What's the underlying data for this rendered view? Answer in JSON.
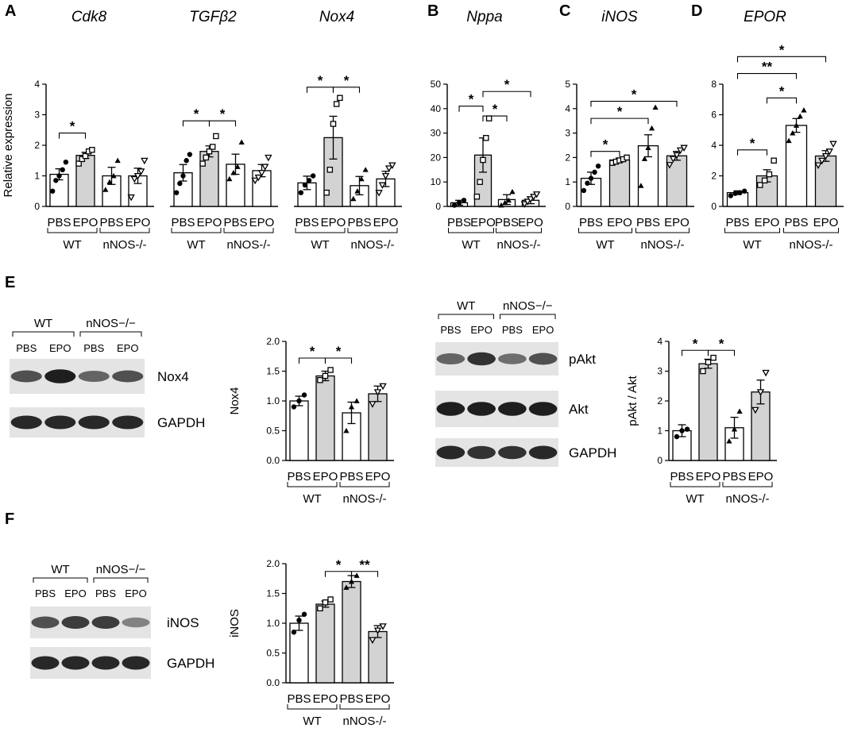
{
  "chart_data": [
    {
      "id": "A-cdk8",
      "type": "bar",
      "panel": "A",
      "title": "Cdk8",
      "ylabel": "Relative expression",
      "ylim": [
        0,
        4
      ],
      "yticks": [
        0,
        1,
        2,
        3,
        4
      ],
      "categories": [
        "PBS",
        "EPO",
        "PBS",
        "EPO"
      ],
      "groups": [
        {
          "label": "WT",
          "span": [
            0,
            1
          ]
        },
        {
          "label": "nNOS-/-",
          "span": [
            2,
            3
          ]
        }
      ],
      "values": [
        1.05,
        1.67,
        1.0,
        1.0
      ],
      "errors": [
        0.18,
        0.1,
        0.28,
        0.25
      ],
      "fills": [
        "#ffffff",
        "#d3d3d3",
        "#ffffff",
        "#ffffff"
      ],
      "markers": [
        "circle",
        "square",
        "triangle",
        "triangle-down"
      ],
      "points": [
        [
          0.5,
          0.85,
          1.0,
          1.2,
          1.45
        ],
        [
          1.4,
          1.55,
          1.65,
          1.8,
          1.85
        ],
        [
          0.55,
          0.8,
          1.0,
          1.5
        ],
        [
          0.3,
          0.9,
          1.0,
          1.15,
          1.5
        ]
      ],
      "significance": [
        {
          "from": 0,
          "to": 1,
          "label": "*",
          "y": 2.4
        }
      ]
    },
    {
      "id": "A-tgfb2",
      "type": "bar",
      "panel": "",
      "title": "TGFβ2",
      "ylabel": "",
      "ylim": [
        0,
        4
      ],
      "yticks": [],
      "categories": [
        "PBS",
        "EPO",
        "PBS",
        "EPO"
      ],
      "groups": [
        {
          "label": "WT",
          "span": [
            0,
            1
          ]
        },
        {
          "label": "nNOS-/-",
          "span": [
            2,
            3
          ]
        }
      ],
      "values": [
        1.1,
        1.8,
        1.38,
        1.17
      ],
      "errors": [
        0.27,
        0.18,
        0.33,
        0.2
      ],
      "fills": [
        "#ffffff",
        "#d3d3d3",
        "#ffffff",
        "#ffffff"
      ],
      "markers": [
        "circle",
        "square",
        "triangle",
        "triangle-down"
      ],
      "points": [
        [
          0.45,
          0.75,
          1.0,
          1.5,
          1.7
        ],
        [
          1.4,
          1.6,
          1.8,
          1.95,
          2.3
        ],
        [
          0.9,
          1.1,
          1.3,
          2.1
        ],
        [
          0.85,
          0.95,
          1.1,
          1.3,
          1.6
        ]
      ],
      "significance": [
        {
          "from": 0,
          "to": 1,
          "label": "*",
          "y": 2.8
        },
        {
          "from": 1,
          "to": 2,
          "label": "*",
          "y": 2.8
        }
      ]
    },
    {
      "id": "A-nox4",
      "type": "bar",
      "panel": "",
      "title": "Nox4",
      "ylabel": "",
      "ylim": [
        0,
        4
      ],
      "yticks": [],
      "categories": [
        "PBS",
        "EPO",
        "PBS",
        "EPO"
      ],
      "groups": [
        {
          "label": "WT",
          "span": [
            0,
            1
          ]
        },
        {
          "label": "nNOS-/-",
          "span": [
            2,
            3
          ]
        }
      ],
      "values": [
        0.77,
        2.25,
        0.68,
        0.9
      ],
      "errors": [
        0.22,
        0.7,
        0.3,
        0.25
      ],
      "fills": [
        "#ffffff",
        "#d3d3d3",
        "#ffffff",
        "#ffffff"
      ],
      "markers": [
        "circle",
        "square",
        "triangle",
        "triangle-down"
      ],
      "points": [
        [
          0.45,
          0.7,
          0.85,
          1.0
        ],
        [
          0.45,
          1.2,
          2.7,
          3.35,
          3.55
        ],
        [
          0.25,
          0.5,
          0.9,
          1.2
        ],
        [
          0.45,
          0.7,
          1.0,
          1.25,
          1.35
        ]
      ],
      "significance": [
        {
          "from": 0,
          "to": 1,
          "label": "*",
          "y": 3.9
        },
        {
          "from": 1,
          "to": 2,
          "label": "*",
          "y": 3.9
        }
      ]
    },
    {
      "id": "B-nppa",
      "type": "bar",
      "panel": "B",
      "title": "Nppa",
      "ylabel": "",
      "ylim": [
        0,
        50
      ],
      "yticks": [
        0,
        10,
        20,
        30,
        40,
        50
      ],
      "categories": [
        "PBS",
        "EPO",
        "PBS",
        "EPO"
      ],
      "groups": [
        {
          "label": "WT",
          "span": [
            0,
            1
          ]
        },
        {
          "label": "nNOS-/-",
          "span": [
            2,
            3
          ]
        }
      ],
      "values": [
        1.5,
        21,
        2.8,
        2.5
      ],
      "errors": [
        1.0,
        7,
        2.0,
        1.4
      ],
      "fills": [
        "#ffffff",
        "#d3d3d3",
        "#ffffff",
        "#ffffff"
      ],
      "markers": [
        "circle",
        "square",
        "triangle",
        "triangle-down"
      ],
      "points": [
        [
          0.5,
          1.5,
          2.5
        ],
        [
          4,
          10,
          19,
          28,
          36
        ],
        [
          0.5,
          1.5,
          2.5,
          6
        ],
        [
          1,
          2,
          3,
          4,
          5
        ]
      ],
      "significance": [
        {
          "from": 0,
          "to": 1,
          "label": "*",
          "y": 41
        },
        {
          "from": 1,
          "to": 2,
          "label": "*",
          "y": 37
        },
        {
          "from": 1,
          "to": 3,
          "label": "*",
          "y": 47
        }
      ]
    },
    {
      "id": "C-inos",
      "type": "bar",
      "panel": "C",
      "title": "iNOS",
      "ylabel": "",
      "ylim": [
        0,
        5
      ],
      "yticks": [
        0,
        1,
        2,
        3,
        4,
        5
      ],
      "categories": [
        "PBS",
        "EPO",
        "PBS",
        "EPO"
      ],
      "groups": [
        {
          "label": "WT",
          "span": [
            0,
            1
          ]
        },
        {
          "label": "nNOS-/-",
          "span": [
            2,
            3
          ]
        }
      ],
      "values": [
        1.15,
        1.9,
        2.48,
        2.07
      ],
      "errors": [
        0.25,
        0.08,
        0.45,
        0.18
      ],
      "fills": [
        "#ffffff",
        "#d3d3d3",
        "#ffffff",
        "#d3d3d3"
      ],
      "markers": [
        "circle",
        "square",
        "triangle",
        "triangle-down"
      ],
      "points": [
        [
          0.65,
          0.95,
          1.15,
          1.4,
          1.65
        ],
        [
          1.78,
          1.83,
          1.88,
          1.93,
          2.0
        ],
        [
          0.85,
          1.95,
          2.4,
          3.2,
          4.05
        ],
        [
          1.7,
          1.95,
          2.1,
          2.3,
          2.4
        ]
      ],
      "significance": [
        {
          "from": 0,
          "to": 1,
          "label": "*",
          "y": 2.25
        },
        {
          "from": 0,
          "to": 2,
          "label": "*",
          "y": 3.6
        },
        {
          "from": 0,
          "to": 3,
          "label": "*",
          "y": 4.3
        }
      ]
    },
    {
      "id": "D-epor",
      "type": "bar",
      "panel": "D",
      "title": "EPOR",
      "ylabel": "",
      "ylim": [
        0,
        8
      ],
      "yticks": [
        0,
        2,
        4,
        6,
        8
      ],
      "categories": [
        "PBS",
        "EPO",
        "PBS",
        "EPO"
      ],
      "groups": [
        {
          "label": "WT",
          "span": [
            0,
            1
          ]
        },
        {
          "label": "nNOS-/-",
          "span": [
            2,
            3
          ]
        }
      ],
      "values": [
        0.9,
        2.0,
        5.3,
        3.3
      ],
      "errors": [
        0.12,
        0.4,
        0.45,
        0.35
      ],
      "fills": [
        "#ffffff",
        "#d3d3d3",
        "#ffffff",
        "#d3d3d3"
      ],
      "markers": [
        "circle",
        "square",
        "triangle",
        "triangle-down"
      ],
      "points": [
        [
          0.7,
          0.85,
          0.9,
          1.0
        ],
        [
          1.4,
          1.7,
          2.1,
          3.0
        ],
        [
          4.3,
          4.8,
          5.3,
          5.9,
          6.3
        ],
        [
          2.7,
          3.0,
          3.3,
          3.6,
          4.1
        ]
      ],
      "significance": [
        {
          "from": 0,
          "to": 1,
          "label": "*",
          "y": 3.7
        },
        {
          "from": 1,
          "to": 2,
          "label": "*",
          "y": 7.1
        },
        {
          "from": 0,
          "to": 2,
          "label": "**",
          "y": 8.7
        },
        {
          "from": 0,
          "to": 3,
          "label": "*",
          "y": 9.8
        }
      ]
    },
    {
      "id": "E-nox4",
      "type": "bar",
      "panel": "",
      "title": "",
      "ylabel": "Nox4",
      "ylim": [
        0,
        2.0
      ],
      "yticks": [
        0.0,
        0.5,
        1.0,
        1.5,
        2.0
      ],
      "categories": [
        "PBS",
        "EPO",
        "PBS",
        "EPO"
      ],
      "groups": [
        {
          "label": "WT",
          "span": [
            0,
            1
          ]
        },
        {
          "label": "nNOS-/-",
          "span": [
            2,
            3
          ]
        }
      ],
      "values": [
        1.0,
        1.42,
        0.8,
        1.12
      ],
      "errors": [
        0.08,
        0.08,
        0.18,
        0.13
      ],
      "fills": [
        "#ffffff",
        "#d3d3d3",
        "#ffffff",
        "#d3d3d3"
      ],
      "markers": [
        "circle",
        "square",
        "triangle",
        "triangle-down"
      ],
      "points": [
        [
          0.9,
          1.0,
          1.1
        ],
        [
          1.35,
          1.42,
          1.52
        ],
        [
          0.5,
          0.9,
          1.0
        ],
        [
          0.95,
          1.15,
          1.25
        ]
      ],
      "significance": [
        {
          "from": 0,
          "to": 1,
          "label": "*",
          "y": 1.72
        },
        {
          "from": 1,
          "to": 2,
          "label": "*",
          "y": 1.72
        }
      ]
    },
    {
      "id": "E-pakt",
      "type": "bar",
      "panel": "",
      "title": "",
      "ylabel": "pAkt / Akt",
      "ylim": [
        0,
        4
      ],
      "yticks": [
        0,
        1,
        2,
        3,
        4
      ],
      "categories": [
        "PBS",
        "EPO",
        "PBS",
        "EPO"
      ],
      "groups": [
        {
          "label": "WT",
          "span": [
            0,
            1
          ]
        },
        {
          "label": "nNOS-/-",
          "span": [
            2,
            3
          ]
        }
      ],
      "values": [
        1.0,
        3.25,
        1.1,
        2.3
      ],
      "errors": [
        0.2,
        0.15,
        0.35,
        0.4
      ],
      "fills": [
        "#ffffff",
        "#d3d3d3",
        "#ffffff",
        "#d3d3d3"
      ],
      "markers": [
        "circle",
        "square",
        "triangle",
        "triangle-down"
      ],
      "points": [
        [
          0.8,
          1.0,
          1.05
        ],
        [
          3.0,
          3.3,
          3.45
        ],
        [
          0.65,
          1.05,
          1.65
        ],
        [
          1.7,
          2.3,
          2.95
        ]
      ],
      "significance": [
        {
          "from": 0,
          "to": 1,
          "label": "*",
          "y": 3.7
        },
        {
          "from": 1,
          "to": 2,
          "label": "*",
          "y": 3.7
        }
      ]
    },
    {
      "id": "F-inos",
      "type": "bar",
      "panel": "",
      "title": "",
      "ylabel": "iNOS",
      "ylim": [
        0,
        2.0
      ],
      "yticks": [
        0.0,
        0.5,
        1.0,
        1.5,
        2.0
      ],
      "categories": [
        "PBS",
        "EPO",
        "PBS",
        "EPO"
      ],
      "groups": [
        {
          "label": "WT",
          "span": [
            0,
            1
          ]
        },
        {
          "label": "nNOS-/-",
          "span": [
            2,
            3
          ]
        }
      ],
      "values": [
        1.0,
        1.32,
        1.7,
        0.86
      ],
      "errors": [
        0.12,
        0.05,
        0.1,
        0.1
      ],
      "fills": [
        "#ffffff",
        "#d3d3d3",
        "#d3d3d3",
        "#d3d3d3"
      ],
      "markers": [
        "circle",
        "square",
        "triangle",
        "triangle-down"
      ],
      "points": [
        [
          0.85,
          1.05,
          1.15
        ],
        [
          1.25,
          1.35,
          1.4
        ],
        [
          1.6,
          1.7,
          1.8
        ],
        [
          0.72,
          0.88,
          0.95
        ]
      ],
      "significance": [
        {
          "from": 1,
          "to": 2,
          "label": "*",
          "y": 1.87
        },
        {
          "from": 2,
          "to": 3,
          "label": "**",
          "y": 1.87
        }
      ]
    }
  ],
  "panel_letters": {
    "E": "E",
    "F": "F"
  },
  "blots": [
    {
      "id": "blot-E-left",
      "group_labels": [
        "WT",
        "nNOS−/−"
      ],
      "lane_labels": [
        "PBS",
        "EPO",
        "PBS",
        "EPO"
      ],
      "bands": [
        {
          "label": "Nox4",
          "intensity": [
            0.7,
            0.95,
            0.6,
            0.7
          ]
        },
        {
          "label": "GAPDH",
          "intensity": [
            0.9,
            0.9,
            0.9,
            0.9
          ]
        }
      ]
    },
    {
      "id": "blot-E-right",
      "group_labels": [
        "WT",
        "nNOS−/−"
      ],
      "lane_labels": [
        "PBS",
        "EPO",
        "PBS",
        "EPO"
      ],
      "bands": [
        {
          "label": "pAkt",
          "intensity": [
            0.6,
            0.85,
            0.55,
            0.7
          ]
        },
        {
          "label": "Akt",
          "intensity": [
            0.95,
            0.95,
            0.95,
            0.95
          ]
        },
        {
          "label": "GAPDH",
          "intensity": [
            0.9,
            0.85,
            0.85,
            0.9
          ]
        }
      ]
    },
    {
      "id": "blot-F",
      "group_labels": [
        "WT",
        "nNOS−/−"
      ],
      "lane_labels": [
        "PBS",
        "EPO",
        "PBS",
        "EPO"
      ],
      "bands": [
        {
          "label": "iNOS",
          "intensity": [
            0.7,
            0.8,
            0.8,
            0.45
          ]
        },
        {
          "label": "GAPDH",
          "intensity": [
            0.9,
            0.9,
            0.9,
            0.9
          ]
        }
      ]
    }
  ]
}
